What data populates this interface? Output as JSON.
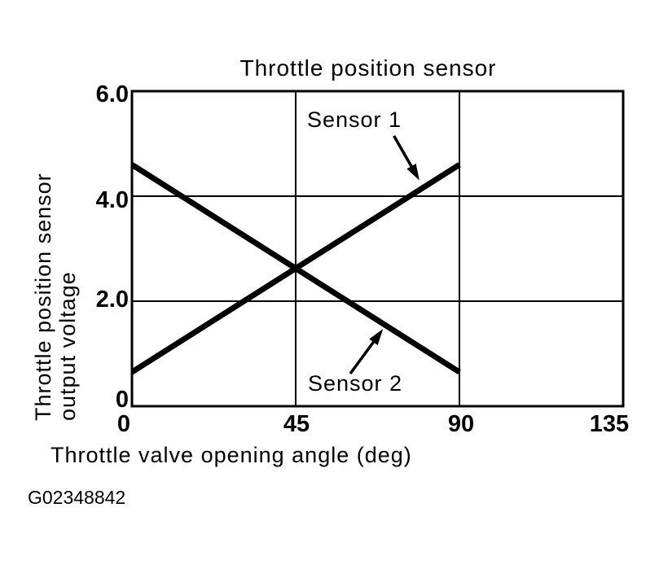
{
  "figure_id": "G02348842",
  "chart_data": {
    "type": "line",
    "title": "Throttle position sensor",
    "xlabel": "Throttle valve opening angle (deg)",
    "ylabel": "Throttle position sensor output voltage",
    "ylabel_lines": [
      "Throttle position sensor",
      "output voltage"
    ],
    "xlim": [
      0,
      135
    ],
    "ylim": [
      0,
      6
    ],
    "x_ticks": [
      "0",
      "45",
      "90",
      "135"
    ],
    "x_tick_values": [
      0,
      45,
      90,
      135
    ],
    "y_ticks": [
      "0",
      "2.0",
      "4.0",
      "6.0"
    ],
    "y_tick_values": [
      0,
      2,
      4,
      6
    ],
    "grid": true,
    "legend_position": "inline-annotations",
    "line_color": "#000000",
    "background_color": "#ffffff",
    "series": [
      {
        "name": "Sensor 1",
        "x": [
          0,
          90
        ],
        "y": [
          0.65,
          4.6
        ]
      },
      {
        "name": "Sensor 2",
        "x": [
          0,
          90
        ],
        "y": [
          4.6,
          0.65
        ]
      }
    ],
    "annotations": [
      {
        "label": "Sensor 1",
        "arrow_from": [
          72,
          5.15
        ],
        "arrow_to": [
          79,
          4.3
        ]
      },
      {
        "label": "Sensor 2",
        "arrow_from": [
          60,
          0.62
        ],
        "arrow_to": [
          69,
          1.47
        ]
      }
    ]
  }
}
